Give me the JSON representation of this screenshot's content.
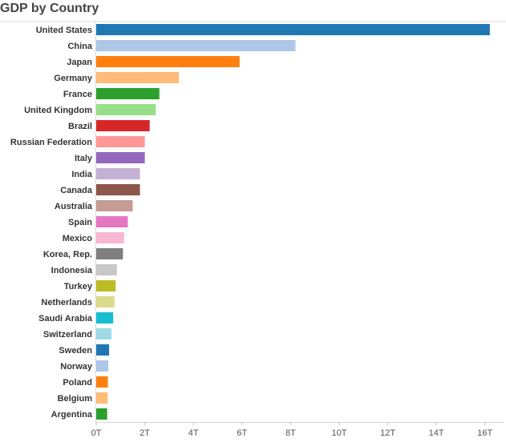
{
  "chart_data": {
    "type": "bar",
    "orientation": "horizontal",
    "title": "GDP by Country",
    "xlabel": "",
    "ylabel": "",
    "xlim": [
      0,
      16.8
    ],
    "x_ticks": [
      "0T",
      "2T",
      "4T",
      "6T",
      "8T",
      "10T",
      "12T",
      "14T",
      "16T"
    ],
    "categories": [
      "United States",
      "China",
      "Japan",
      "Germany",
      "France",
      "United Kingdom",
      "Brazil",
      "Russian Federation",
      "Italy",
      "India",
      "Canada",
      "Australia",
      "Spain",
      "Mexico",
      "Korea, Rep.",
      "Indonesia",
      "Turkey",
      "Netherlands",
      "Saudi Arabia",
      "Switzerland",
      "Sweden",
      "Norway",
      "Poland",
      "Belgium",
      "Argentina"
    ],
    "values": [
      16.2,
      8.2,
      5.9,
      3.4,
      2.6,
      2.45,
      2.2,
      2.0,
      2.0,
      1.8,
      1.8,
      1.5,
      1.3,
      1.15,
      1.1,
      0.85,
      0.8,
      0.75,
      0.7,
      0.63,
      0.53,
      0.5,
      0.48,
      0.47,
      0.45
    ],
    "colors": [
      "#1f77b4",
      "#aec7e8",
      "#ff7f0e",
      "#ffbb78",
      "#2ca02c",
      "#98df8a",
      "#d62728",
      "#ff9896",
      "#9467bd",
      "#c5b0d5",
      "#8c564b",
      "#c49c94",
      "#e377c2",
      "#f7b6d2",
      "#7f7f7f",
      "#c7c7c7",
      "#bcbd22",
      "#dbdb8d",
      "#17becf",
      "#9edae5",
      "#1f77b4",
      "#aec7e8",
      "#ff7f0e",
      "#ffbb78",
      "#2ca02c"
    ],
    "grid": false
  }
}
